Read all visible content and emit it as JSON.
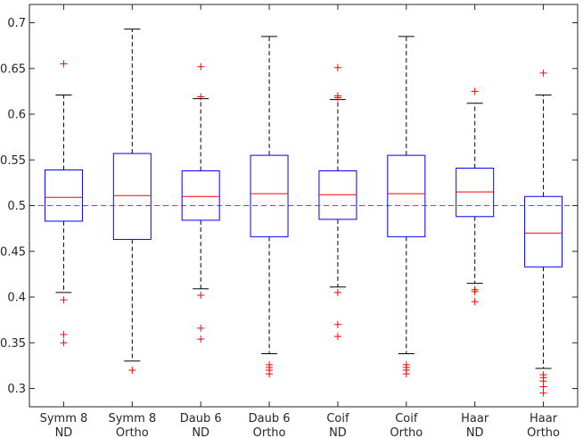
{
  "chart_data": {
    "type": "box",
    "title": "",
    "xlabel": "",
    "ylabel": "",
    "ylim": [
      0.28,
      0.72
    ],
    "yticks": [
      0.3,
      0.35,
      0.4,
      0.45,
      0.5,
      0.55,
      0.6,
      0.65,
      0.7
    ],
    "ytick_labels": [
      "0.3",
      "0.35",
      "0.4",
      "0.45",
      "0.5",
      "0.55",
      "0.6",
      "0.65",
      "0.7"
    ],
    "reference_line": 0.5,
    "categories": [
      {
        "line1": "Symm 8",
        "line2": "ND"
      },
      {
        "line1": "Symm 8",
        "line2": "Ortho"
      },
      {
        "line1": "Daub 6",
        "line2": "ND"
      },
      {
        "line1": "Daub 6",
        "line2": "Ortho"
      },
      {
        "line1": "Coif",
        "line2": "ND"
      },
      {
        "line1": "Coif",
        "line2": "Ortho"
      },
      {
        "line1": "Haar",
        "line2": "ND"
      },
      {
        "line1": "Haar",
        "line2": "Ortho"
      }
    ],
    "boxes": [
      {
        "whisker_low": 0.405,
        "q1": 0.483,
        "median": 0.509,
        "q3": 0.539,
        "whisker_high": 0.621,
        "outliers": [
          0.655,
          0.397,
          0.359,
          0.35
        ]
      },
      {
        "whisker_low": 0.33,
        "q1": 0.463,
        "median": 0.511,
        "q3": 0.557,
        "whisker_high": 0.693,
        "outliers": [
          0.32
        ]
      },
      {
        "whisker_low": 0.409,
        "q1": 0.484,
        "median": 0.51,
        "q3": 0.538,
        "whisker_high": 0.617,
        "outliers": [
          0.652,
          0.619,
          0.402,
          0.366,
          0.354
        ]
      },
      {
        "whisker_low": 0.338,
        "q1": 0.466,
        "median": 0.513,
        "q3": 0.555,
        "whisker_high": 0.685,
        "outliers": [
          0.326,
          0.323,
          0.32,
          0.316
        ]
      },
      {
        "whisker_low": 0.411,
        "q1": 0.485,
        "median": 0.512,
        "q3": 0.538,
        "whisker_high": 0.616,
        "outliers": [
          0.651,
          0.62,
          0.618,
          0.405,
          0.37,
          0.357
        ]
      },
      {
        "whisker_low": 0.338,
        "q1": 0.466,
        "median": 0.513,
        "q3": 0.555,
        "whisker_high": 0.685,
        "outliers": [
          0.326,
          0.323,
          0.32,
          0.316
        ]
      },
      {
        "whisker_low": 0.415,
        "q1": 0.488,
        "median": 0.515,
        "q3": 0.541,
        "whisker_high": 0.612,
        "outliers": [
          0.625,
          0.408,
          0.406,
          0.395
        ]
      },
      {
        "whisker_low": 0.322,
        "q1": 0.433,
        "median": 0.47,
        "q3": 0.51,
        "whisker_high": 0.621,
        "outliers": [
          0.645,
          0.315,
          0.312,
          0.308,
          0.302,
          0.295
        ]
      }
    ],
    "colors": {
      "box": "#0000ff",
      "median": "#ff0000",
      "whisker": "#000000",
      "outlier": "#ff0000",
      "reference_line": "#ff00ff",
      "axes": "#262626"
    }
  }
}
